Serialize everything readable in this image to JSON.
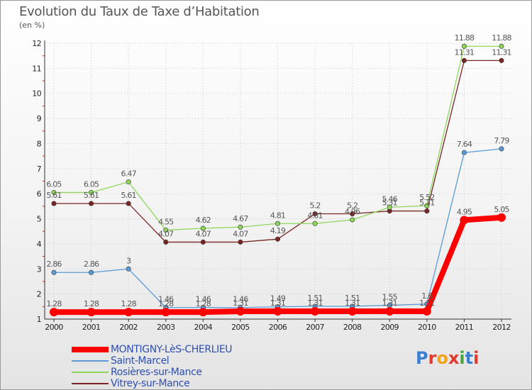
{
  "title": "Evolution du Taux de Taxe d’Habitation",
  "unit_label": "(en %)",
  "logo": {
    "text": "Proxiti",
    "colors": [
      "#3a7fd0",
      "#e33a2c",
      "#f2a21c",
      "#e33a2c",
      "#4aa63a",
      "#3a7fd0",
      "#e33a2c"
    ]
  },
  "chart_data": {
    "type": "line",
    "title": "Evolution du Taux de Taxe d’Habitation",
    "ylabel": "(en %)",
    "xlabel": "",
    "x": [
      "2000",
      "2001",
      "2002",
      "2003",
      "2004",
      "2005",
      "2006",
      "2007",
      "2008",
      "2009",
      "2010",
      "2011",
      "2012"
    ],
    "ylim": [
      1,
      12
    ],
    "yticks": [
      1,
      2,
      3,
      4,
      5,
      6,
      7,
      8,
      9,
      10,
      11,
      12
    ],
    "grid": true,
    "legend": "bottom-left",
    "series": [
      {
        "name": "MONTIGNY-LèS-CHERLIEU",
        "color": "#ff0000",
        "emphasis": true,
        "values": [
          1.28,
          1.28,
          1.28,
          1.28,
          1.28,
          1.31,
          1.31,
          1.31,
          1.31,
          1.31,
          1.31,
          4.95,
          5.05
        ],
        "labels": [
          "1.28",
          "1.28",
          "1.28",
          "1.28",
          "1.28",
          "1.31",
          "1.31",
          "1.31",
          "1.31",
          "1.31",
          "1.31",
          "4.95",
          "5.05"
        ]
      },
      {
        "name": "Saint-Marcel",
        "color": "#5b9bd5",
        "values": [
          2.86,
          2.86,
          3,
          1.46,
          1.46,
          1.46,
          1.49,
          1.51,
          1.51,
          1.55,
          1.6,
          7.64,
          7.79
        ],
        "labels": [
          "2.86",
          "2.86",
          "3",
          "1.46",
          "1.46",
          "1.46",
          "1.49",
          "1.51",
          "1.51",
          "1.55",
          "1.6",
          "7.64",
          "7.79"
        ]
      },
      {
        "name": "Rosières-sur-Mance",
        "color": "#8ed65a",
        "values": [
          6.05,
          6.05,
          6.47,
          4.55,
          4.62,
          4.67,
          4.81,
          4.81,
          4.96,
          5.46,
          5.52,
          11.88,
          11.88
        ],
        "labels": [
          "6.05",
          "6.05",
          "6.47",
          "4.55",
          "4.62",
          "4.67",
          "4.81",
          "4.81",
          "4.96",
          "5.46",
          "5.52",
          "11.88",
          "11.88"
        ]
      },
      {
        "name": "Vitrey-sur-Mance",
        "color": "#7a2424",
        "values": [
          5.61,
          5.61,
          5.61,
          4.07,
          4.07,
          4.07,
          4.19,
          5.2,
          5.2,
          5.31,
          5.31,
          11.31,
          11.31
        ],
        "labels": [
          "5.61",
          "5.61",
          "5.61",
          "4.07",
          "4.07",
          "4.07",
          "4.19",
          "5.2",
          "5.2",
          "5.31",
          "5.31",
          "11.31",
          "11.31"
        ]
      }
    ]
  }
}
